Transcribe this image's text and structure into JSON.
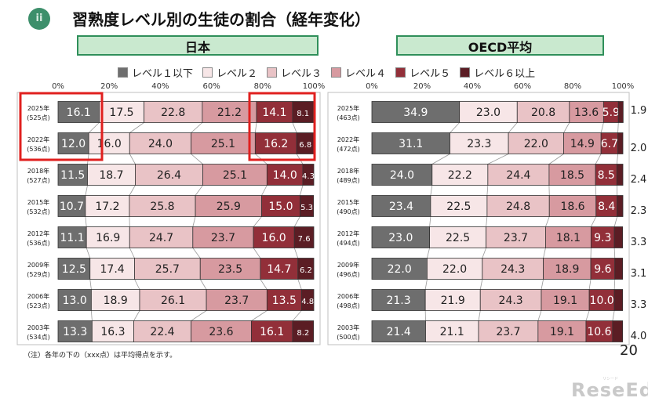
{
  "title": {
    "badge": "ii",
    "text": "習熟度レベル別の生徒の割合（経年変化）"
  },
  "colors": {
    "level1": "#6e6e6e",
    "level2": "#f7e6e7",
    "level3": "#e9c3c6",
    "level4": "#d79aa0",
    "level5": "#922f39",
    "level6": "#5b1d24",
    "highlight": "#e0201f",
    "panel_head_bg": "#c9e9cf",
    "panel_head_border": "#2f8f5a"
  },
  "legend": [
    "レベル１以下",
    "レベル２",
    "レベル３",
    "レベル４",
    "レベル５",
    "レベル６以上"
  ],
  "chart_data": [
    {
      "type": "bar",
      "orientation": "horizontal-stacked-percent",
      "panel_title": "日本",
      "xtick_labels": [
        "0%",
        "20%",
        "40%",
        "60%",
        "80%",
        "100%"
      ],
      "xlim": [
        0,
        100
      ],
      "categories": [
        "2025年（525点）",
        "2022年（536点）",
        "2018年（527点）",
        "2015年（532点）",
        "2012年（536点）",
        "2009年（529点）",
        "2006年（523点）",
        "2003年（534点）"
      ],
      "row_labels": [
        [
          "2025年",
          "(525点)"
        ],
        [
          "2022年",
          "(536点)"
        ],
        [
          "2018年",
          "(527点)"
        ],
        [
          "2015年",
          "(532点)"
        ],
        [
          "2012年",
          "(536点)"
        ],
        [
          "2009年",
          "(529点)"
        ],
        [
          "2006年",
          "(523点)"
        ],
        [
          "2003年",
          "(534点)"
        ]
      ],
      "series": [
        {
          "name": "レベル１以下",
          "values": [
            16.1,
            12.0,
            11.5,
            10.7,
            11.1,
            12.5,
            13.0,
            13.3
          ]
        },
        {
          "name": "レベル２",
          "values": [
            17.5,
            16.0,
            18.7,
            17.2,
            16.9,
            17.4,
            18.9,
            16.3
          ]
        },
        {
          "name": "レベル３",
          "values": [
            22.8,
            24.0,
            26.4,
            25.8,
            24.7,
            25.7,
            26.1,
            22.4
          ]
        },
        {
          "name": "レベル４",
          "values": [
            21.2,
            25.1,
            25.1,
            25.9,
            23.7,
            23.5,
            23.7,
            23.6
          ]
        },
        {
          "name": "レベル５",
          "values": [
            14.1,
            16.2,
            14.0,
            15.0,
            16.0,
            14.7,
            13.5,
            16.1
          ]
        },
        {
          "name": "レベル６以上",
          "values": [
            8.1,
            6.8,
            4.3,
            5.3,
            7.6,
            6.2,
            4.8,
            8.2
          ]
        }
      ]
    },
    {
      "type": "bar",
      "orientation": "horizontal-stacked-percent",
      "panel_title": "OECD平均",
      "xtick_labels": [
        "0%",
        "20%",
        "40%",
        "60%",
        "80%",
        "100%"
      ],
      "xlim": [
        0,
        100
      ],
      "categories": [
        "2025年（463点）",
        "2022年（472点）",
        "2018年（489点）",
        "2015年（490点）",
        "2012年（494点）",
        "2009年（496点）",
        "2006年（498点）",
        "2003年（500点）"
      ],
      "row_labels": [
        [
          "2025年",
          "(463点)"
        ],
        [
          "2022年",
          "(472点)"
        ],
        [
          "2018年",
          "(489点)"
        ],
        [
          "2015年",
          "(490点)"
        ],
        [
          "2012年",
          "(494点)"
        ],
        [
          "2009年",
          "(496点)"
        ],
        [
          "2006年",
          "(498点)"
        ],
        [
          "2003年",
          "(500点)"
        ]
      ],
      "series": [
        {
          "name": "レベル１以下",
          "values": [
            34.9,
            31.1,
            24.0,
            23.4,
            23.0,
            22.0,
            21.3,
            21.4
          ]
        },
        {
          "name": "レベル２",
          "values": [
            23.0,
            23.3,
            22.2,
            22.5,
            22.5,
            22.0,
            21.9,
            21.1
          ]
        },
        {
          "name": "レベル３",
          "values": [
            20.8,
            22.0,
            24.4,
            24.8,
            23.7,
            24.3,
            24.3,
            23.7
          ]
        },
        {
          "name": "レベル４",
          "values": [
            13.6,
            14.9,
            18.5,
            18.6,
            18.1,
            18.9,
            19.1,
            19.1
          ]
        },
        {
          "name": "レベル５",
          "values": [
            5.9,
            6.7,
            8.5,
            8.4,
            9.3,
            9.6,
            10.0,
            10.6
          ]
        },
        {
          "name": "レベル６以上",
          "values": [
            1.9,
            2.0,
            2.4,
            2.3,
            3.3,
            3.1,
            3.3,
            4.0
          ]
        }
      ]
    }
  ],
  "note": "（注）各年の下の（xxx点）は平均得点を示す。",
  "page_number": "20",
  "watermark": {
    "brand": "ReseEd",
    "sub": "リシード"
  }
}
